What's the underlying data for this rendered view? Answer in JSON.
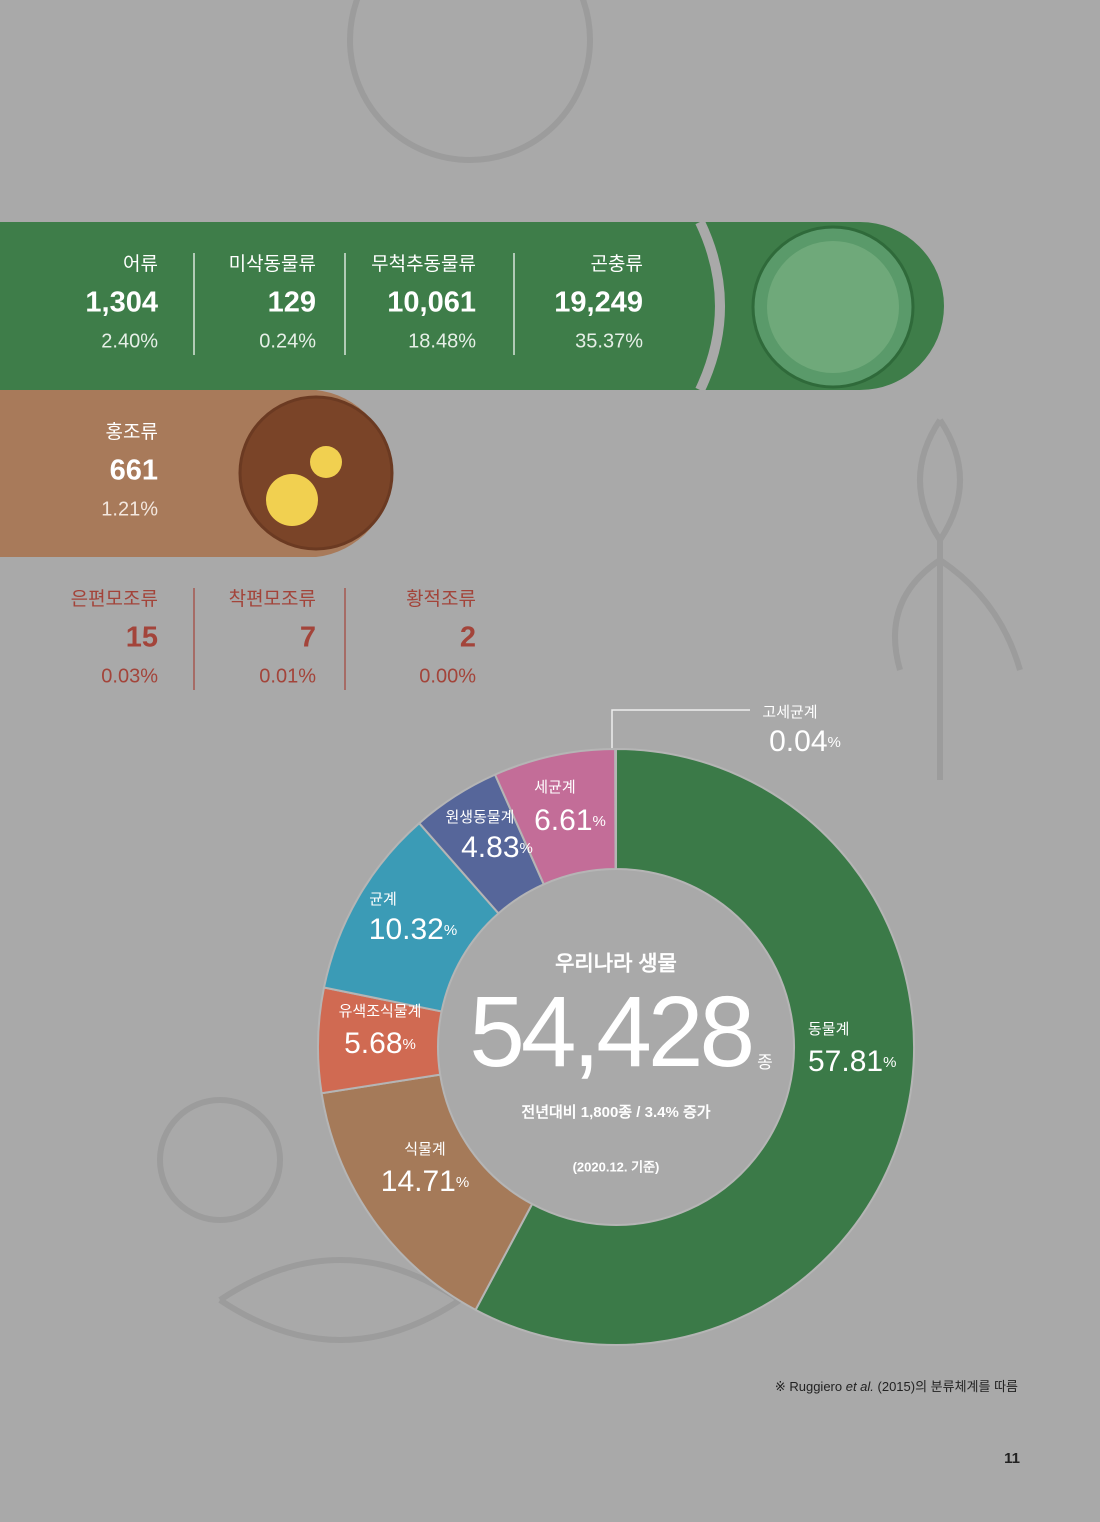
{
  "groups": [
    {
      "items": [
        {
          "name": "어류",
          "count": "1,304",
          "percent": "2.40%"
        },
        {
          "name": "미삭동물류",
          "count": "129",
          "percent": "0.24%"
        },
        {
          "name": "무척추동물류",
          "count": "10,061",
          "percent": "18.48%"
        },
        {
          "name": "곤충류",
          "count": "19,249",
          "percent": "35.37%"
        }
      ]
    },
    {
      "items": [
        {
          "name": "홍조류",
          "count": "661",
          "percent": "1.21%"
        }
      ]
    },
    {
      "items": [
        {
          "name": "은편모조류",
          "count": "15",
          "percent": "0.03%"
        },
        {
          "name": "착편모조류",
          "count": "7",
          "percent": "0.01%"
        },
        {
          "name": "황적조류",
          "count": "2",
          "percent": "0.00%"
        }
      ]
    }
  ],
  "chart_data": {
    "type": "donut",
    "categories": [
      "동물계",
      "식물계",
      "유색조식물계",
      "균계",
      "원생동물계",
      "세균계",
      "고세균계"
    ],
    "values": [
      57.81,
      14.71,
      5.68,
      10.32,
      4.83,
      6.61,
      0.04
    ],
    "unit": "%",
    "colors": [
      "#3b7a48",
      "#a57a59",
      "#d06a52",
      "#3b9bb6",
      "#56669a",
      "#c36d98",
      "#8a8a8a"
    ],
    "center_title": "우리나라 생물",
    "center_value": "54,428",
    "center_unit": "종",
    "center_note": "전년대비 1,800종 / 3.4% 증가",
    "center_date": "(2020.12. 기준)"
  },
  "footnote": {
    "before": "※ Ruggiero ",
    "italic": "et al.",
    "after": " (2015)의 분류체계를 따름"
  },
  "page_number": "11"
}
